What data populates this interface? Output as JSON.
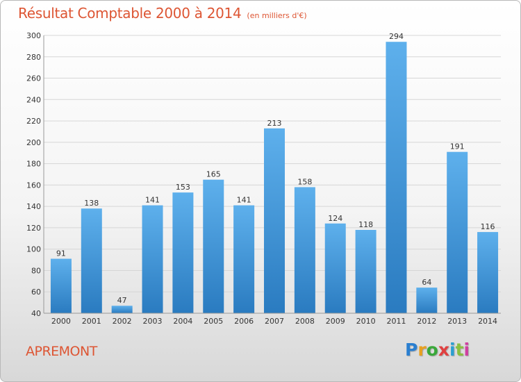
{
  "header": {
    "title": "Résultat Comptable 2000 à 2014",
    "unit": "(en milliers d'€)"
  },
  "footer": {
    "commune": "APREMONT",
    "logo_letters": [
      {
        "char": "P",
        "color": "#2a7fd0"
      },
      {
        "char": "r",
        "color": "#e8a020"
      },
      {
        "char": "o",
        "color": "#3aa83a"
      },
      {
        "char": "x",
        "color": "#e04040"
      },
      {
        "char": "i",
        "color": "#2a9fd0"
      },
      {
        "char": "t",
        "color": "#8ac040"
      },
      {
        "char": "i",
        "color": "#d040a0"
      }
    ]
  },
  "colors": {
    "bar_light": "#5eb0ec",
    "bar_dark": "#2a7bc0",
    "grid": "#d6d6d6",
    "axis_text": "#333333"
  },
  "chart_data": {
    "type": "bar",
    "title": "Résultat Comptable 2000 à 2014",
    "categories": [
      "2000",
      "2001",
      "2002",
      "2003",
      "2004",
      "2005",
      "2006",
      "2007",
      "2008",
      "2009",
      "2010",
      "2011",
      "2012",
      "2013",
      "2014"
    ],
    "values": [
      91,
      138,
      47,
      141,
      153,
      165,
      141,
      213,
      158,
      124,
      118,
      294,
      64,
      191,
      116
    ],
    "ylim": [
      40,
      300
    ],
    "yticks": [
      40,
      60,
      80,
      100,
      120,
      140,
      160,
      180,
      200,
      220,
      240,
      260,
      280,
      300
    ],
    "grid": true,
    "xlabel": "",
    "ylabel": ""
  }
}
